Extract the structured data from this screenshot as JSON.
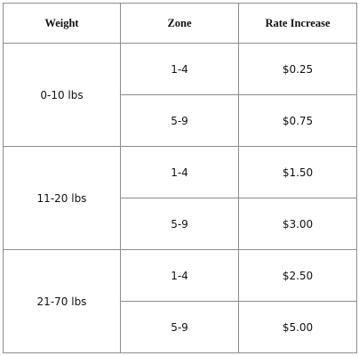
{
  "table": {
    "header": [
      "Weight",
      "Zone",
      "Rate Increase"
    ],
    "groups": [
      {
        "weight": "0-10 lbs",
        "rows": [
          [
            "1-4",
            "$0.25"
          ],
          [
            "5-9",
            "$0.75"
          ]
        ]
      },
      {
        "weight": "11-20 lbs",
        "rows": [
          [
            "1-4",
            "$1.50"
          ],
          [
            "5-9",
            "$3.00"
          ]
        ]
      },
      {
        "weight": "21-70 lbs",
        "rows": [
          [
            "1-4",
            "$2.50"
          ],
          [
            "5-9",
            "$5.00"
          ]
        ]
      }
    ]
  }
}
